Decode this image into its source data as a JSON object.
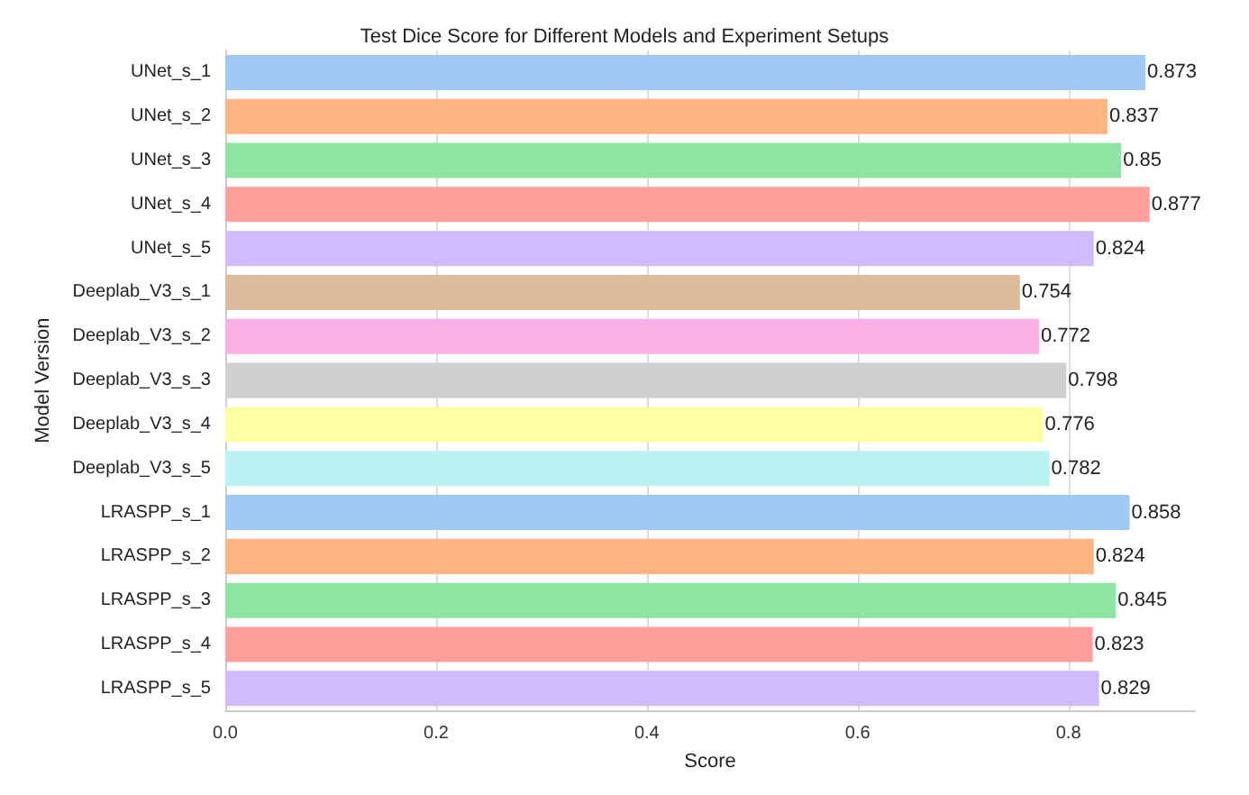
{
  "chart_data": {
    "type": "bar",
    "orientation": "horizontal",
    "title": "Test Dice Score for Different Models and Experiment Setups",
    "xlabel": "Score",
    "ylabel": "Model Version",
    "categories": [
      "UNet_s_1",
      "UNet_s_2",
      "UNet_s_3",
      "UNet_s_4",
      "UNet_s_5",
      "Deeplab_V3_s_1",
      "Deeplab_V3_s_2",
      "Deeplab_V3_s_3",
      "Deeplab_V3_s_4",
      "Deeplab_V3_s_5",
      "LRASPP_s_1",
      "LRASPP_s_2",
      "LRASPP_s_3",
      "LRASPP_s_4",
      "LRASPP_s_5"
    ],
    "values": [
      0.873,
      0.837,
      0.85,
      0.877,
      0.824,
      0.754,
      0.772,
      0.798,
      0.776,
      0.782,
      0.858,
      0.824,
      0.845,
      0.823,
      0.829
    ],
    "colors": [
      "#a1c9f4",
      "#ffb482",
      "#8de5a1",
      "#ff9f9b",
      "#d0bbff",
      "#debb9b",
      "#fab0e4",
      "#cfcfcf",
      "#fffea3",
      "#b9f2f0",
      "#a1c9f4",
      "#ffb482",
      "#8de5a1",
      "#ff9f9b",
      "#d0bbff"
    ],
    "xlim": [
      0,
      0.92
    ],
    "xticks": [
      {
        "value": 0,
        "label": "0.0"
      },
      0.2,
      0.4,
      0.6,
      0.8
    ],
    "grid": "x",
    "data_labels": true
  }
}
